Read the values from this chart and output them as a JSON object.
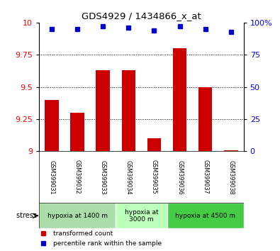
{
  "title": "GDS4929 / 1434866_x_at",
  "samples": [
    "GSM399031",
    "GSM399032",
    "GSM399033",
    "GSM399034",
    "GSM399035",
    "GSM399036",
    "GSM399037",
    "GSM399038"
  ],
  "red_values": [
    9.4,
    9.3,
    9.63,
    9.63,
    9.1,
    9.8,
    9.5,
    9.01
  ],
  "blue_values": [
    95,
    95,
    97,
    96,
    94,
    97,
    95,
    93
  ],
  "ylim_left": [
    9.0,
    10.0
  ],
  "ylim_right": [
    0,
    100
  ],
  "yticks_left": [
    9.0,
    9.25,
    9.5,
    9.75,
    10.0
  ],
  "ytick_labels_left": [
    "9",
    "9.25",
    "9.5",
    "9.75",
    "10"
  ],
  "yticks_right": [
    0,
    25,
    50,
    75,
    100
  ],
  "ytick_labels_right": [
    "0",
    "25",
    "50",
    "75",
    "100%"
  ],
  "bar_color": "#cc0000",
  "dot_color": "#0000cc",
  "sample_box_color": "#cccccc",
  "groups": [
    {
      "label": "hypoxia at 1400 m",
      "start": 0,
      "end": 3,
      "color": "#aaddaa"
    },
    {
      "label": "hypoxia at\n3000 m",
      "start": 3,
      "end": 5,
      "color": "#bbffbb"
    },
    {
      "label": "hypoxia at 4500 m",
      "start": 5,
      "end": 8,
      "color": "#44cc44"
    }
  ],
  "legend_items": [
    {
      "color": "#cc0000",
      "label": "transformed count"
    },
    {
      "color": "#0000cc",
      "label": "percentile rank within the sample"
    }
  ],
  "stress_label": "stress",
  "bg_color": "#ffffff"
}
